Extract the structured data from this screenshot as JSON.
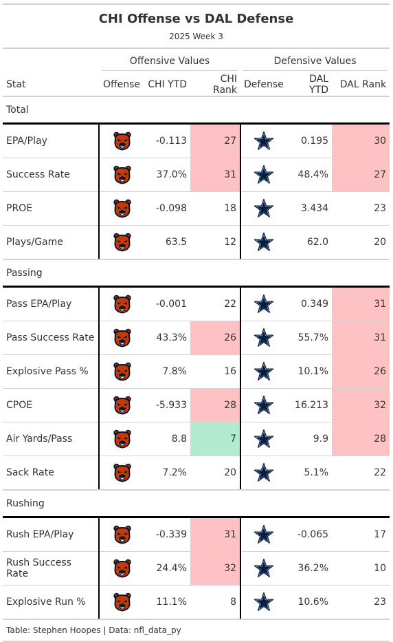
{
  "header": {
    "title": "CHI Offense vs DAL Defense",
    "subtitle": "2025 Week 3"
  },
  "spanners": {
    "offensive": "Offensive Values",
    "defensive": "Defensive Values"
  },
  "columns": {
    "stat": "Stat",
    "offense": "Offense",
    "off_ytd": "CHI YTD",
    "off_rank": "CHI Rank",
    "defense": "Defense",
    "def_ytd": "DAL YTD",
    "def_rank": "DAL Rank"
  },
  "icons": {
    "offense": "chicago-bears-logo-icon",
    "defense": "dallas-cowboys-star-icon"
  },
  "colors": {
    "bad_rank": "#ffc2c4",
    "good_rank": "#b3ebd0",
    "bears_orange": "#c83803",
    "bears_navy": "#0b162a",
    "cowboys_navy": "#041e42"
  },
  "groups": [
    {
      "label": "Total",
      "rows": [
        {
          "stat": "EPA/Play",
          "off_ytd": "-0.113",
          "off_rank": "27",
          "off_hl": "bad",
          "def_ytd": "0.195",
          "def_rank": "30",
          "def_hl": "bad"
        },
        {
          "stat": "Success Rate",
          "off_ytd": "37.0%",
          "off_rank": "31",
          "off_hl": "bad",
          "def_ytd": "48.4%",
          "def_rank": "27",
          "def_hl": "bad"
        },
        {
          "stat": "PROE",
          "off_ytd": "-0.098",
          "off_rank": "18",
          "off_hl": "",
          "def_ytd": "3.434",
          "def_rank": "23",
          "def_hl": ""
        },
        {
          "stat": "Plays/Game",
          "off_ytd": "63.5",
          "off_rank": "12",
          "off_hl": "",
          "def_ytd": "62.0",
          "def_rank": "20",
          "def_hl": ""
        }
      ]
    },
    {
      "label": "Passing",
      "rows": [
        {
          "stat": "Pass EPA/Play",
          "off_ytd": "-0.001",
          "off_rank": "22",
          "off_hl": "",
          "def_ytd": "0.349",
          "def_rank": "31",
          "def_hl": "bad"
        },
        {
          "stat": "Pass Success Rate",
          "off_ytd": "43.3%",
          "off_rank": "26",
          "off_hl": "bad",
          "def_ytd": "55.7%",
          "def_rank": "31",
          "def_hl": "bad"
        },
        {
          "stat": "Explosive Pass %",
          "off_ytd": "7.8%",
          "off_rank": "16",
          "off_hl": "",
          "def_ytd": "10.1%",
          "def_rank": "26",
          "def_hl": "bad"
        },
        {
          "stat": "CPOE",
          "off_ytd": "-5.933",
          "off_rank": "28",
          "off_hl": "bad",
          "def_ytd": "16.213",
          "def_rank": "32",
          "def_hl": "bad"
        },
        {
          "stat": "Air Yards/Pass",
          "off_ytd": "8.8",
          "off_rank": "7",
          "off_hl": "good",
          "def_ytd": "9.9",
          "def_rank": "28",
          "def_hl": "bad"
        },
        {
          "stat": "Sack Rate",
          "off_ytd": "7.2%",
          "off_rank": "20",
          "off_hl": "",
          "def_ytd": "5.1%",
          "def_rank": "22",
          "def_hl": ""
        }
      ]
    },
    {
      "label": "Rushing",
      "rows": [
        {
          "stat": "Rush EPA/Play",
          "off_ytd": "-0.339",
          "off_rank": "31",
          "off_hl": "bad",
          "def_ytd": "-0.065",
          "def_rank": "17",
          "def_hl": ""
        },
        {
          "stat": "Rush Success Rate",
          "off_ytd": "24.4%",
          "off_rank": "32",
          "off_hl": "bad",
          "def_ytd": "36.2%",
          "def_rank": "10",
          "def_hl": ""
        },
        {
          "stat": "Explosive Run %",
          "off_ytd": "11.1%",
          "off_rank": "8",
          "off_hl": "",
          "def_ytd": "10.6%",
          "def_rank": "23",
          "def_hl": ""
        }
      ]
    }
  ],
  "footer": {
    "source": "Table: Stephen Hoopes | Data: nfl_data_py"
  }
}
